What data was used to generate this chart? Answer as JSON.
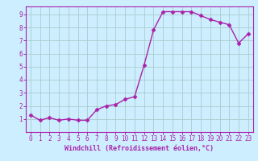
{
  "x": [
    0,
    1,
    2,
    3,
    4,
    5,
    6,
    7,
    8,
    9,
    10,
    11,
    12,
    13,
    14,
    15,
    16,
    17,
    18,
    19,
    20,
    21,
    22,
    23
  ],
  "y": [
    1.3,
    0.9,
    1.1,
    0.9,
    1.0,
    0.9,
    0.9,
    1.7,
    2.0,
    2.1,
    2.5,
    2.7,
    5.1,
    7.8,
    9.2,
    9.2,
    9.2,
    9.2,
    8.9,
    8.6,
    8.4,
    8.2,
    6.8,
    7.5
  ],
  "line_color": "#aa22aa",
  "marker": "D",
  "marker_size": 2.5,
  "bg_color": "#cceeff",
  "grid_color": "#aacccc",
  "xlabel": "Windchill (Refroidissement éolien,°C)",
  "xlabel_color": "#aa22aa",
  "tick_color": "#aa22aa",
  "spine_color": "#aa22aa",
  "xlim": [
    -0.5,
    23.5
  ],
  "ylim": [
    0,
    9.6
  ],
  "yticks": [
    1,
    2,
    3,
    4,
    5,
    6,
    7,
    8,
    9
  ],
  "xticks": [
    0,
    1,
    2,
    3,
    4,
    5,
    6,
    7,
    8,
    9,
    10,
    11,
    12,
    13,
    14,
    15,
    16,
    17,
    18,
    19,
    20,
    21,
    22,
    23
  ],
  "tick_fontsize": 5.5,
  "xlabel_fontsize": 6.0,
  "linewidth": 1.0
}
